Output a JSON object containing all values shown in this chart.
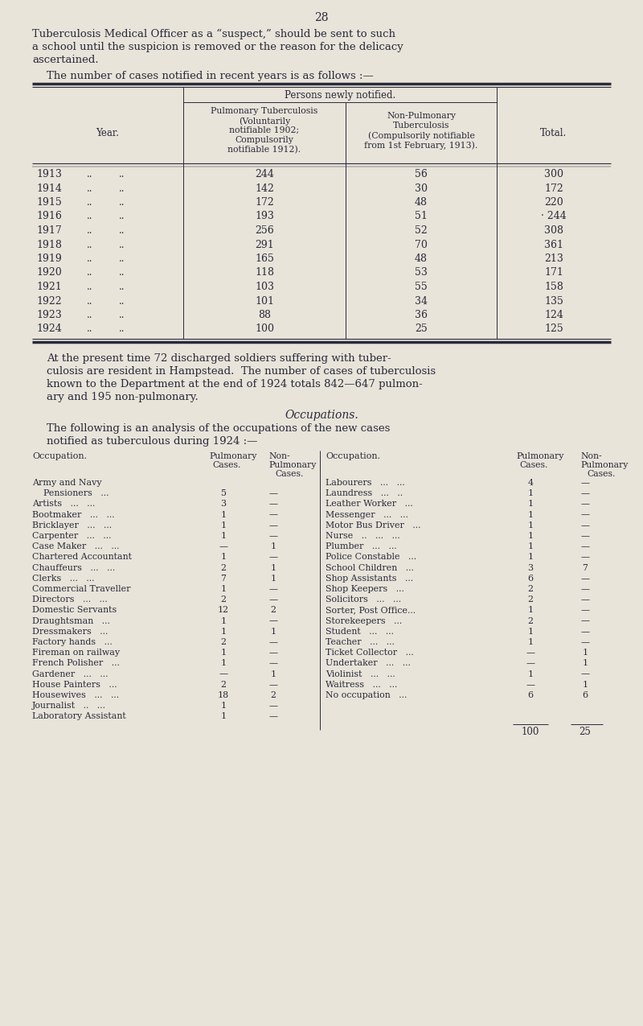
{
  "page_number": "28",
  "bg_color": "#e8e4da",
  "text_color": "#2a2a3a",
  "intro_text": [
    "Tuberculosis Medical Officer as a “suspect,” should be sent to such",
    "a school until the suspicion is removed or the reason for the delicacy",
    "ascertained."
  ],
  "table1_intro": "The number of cases notified in recent years is as follows :—",
  "table1_data": [
    [
      "1913",
      "244",
      "56",
      "300"
    ],
    [
      "1914",
      "142",
      "30",
      "172"
    ],
    [
      "1915",
      "172",
      "48",
      "220"
    ],
    [
      "1916",
      "193",
      "51",
      "· 244"
    ],
    [
      "1917",
      "256",
      "52",
      "308"
    ],
    [
      "1918",
      "291",
      "70",
      "361"
    ],
    [
      "1919",
      "165",
      "48",
      "213"
    ],
    [
      "1920",
      "118",
      "53",
      "171"
    ],
    [
      "1921",
      "103",
      "55",
      "158"
    ],
    [
      "1922",
      "101",
      "34",
      "135"
    ],
    [
      "1923",
      "88",
      "36",
      "124"
    ],
    [
      "1924",
      "100",
      "25",
      "125"
    ]
  ],
  "middle_text": [
    "At the present time 72 discharged soldiers suffering with tuber-",
    "culosis are resident in Hampstead.  The number of cases of tuberculosis",
    "known to the Department at the end of 1924 totals 842—647 pulmon-",
    "ary and 195 non-pulmonary."
  ],
  "occupations_title": "Occupations.",
  "occupations_intro": [
    "The following is an analysis of the occupations of the new cases",
    "notified as tuberculous during 1924 :—"
  ],
  "left_occupations": [
    [
      "Army and Navy",
      "",
      ""
    ],
    [
      "    Pensioners   ...   ",
      "5",
      "—"
    ],
    [
      "Artists   ...   ...",
      "3",
      "—"
    ],
    [
      "Bootmaker   ...   ...",
      "1",
      "—"
    ],
    [
      "Bricklayer   ...   ...",
      "1",
      "—"
    ],
    [
      "Carpenter   ...   ...",
      "1",
      "—"
    ],
    [
      "Case Maker   ...   ...",
      "—",
      "1"
    ],
    [
      "Chartered Accountant",
      "1",
      "—"
    ],
    [
      "Chauffeurs   ...   ...",
      "2",
      "1"
    ],
    [
      "Clerks   ...   ...",
      "7",
      "1"
    ],
    [
      "Commercial Traveller",
      "1",
      "—"
    ],
    [
      "Directors   ...   ...",
      "2",
      "—"
    ],
    [
      "Domestic Servants",
      "12",
      "2"
    ],
    [
      "Draughtsman   ...",
      "1",
      "—"
    ],
    [
      "Dressmakers   ...",
      "1",
      "1"
    ],
    [
      "Factory hands   ...",
      "2",
      "—"
    ],
    [
      "Fireman on railway",
      "1",
      "—"
    ],
    [
      "French Polisher   ...",
      "1",
      "—"
    ],
    [
      "Gardener   ...   ...",
      "—",
      "1"
    ],
    [
      "House Painters   ...",
      "2",
      "—"
    ],
    [
      "Housewives   ...   ...",
      "18",
      "2"
    ],
    [
      "Journalist   ..   ...",
      "1",
      "—"
    ],
    [
      "Laboratory Assistant",
      "1",
      "—"
    ]
  ],
  "right_occupations": [
    [
      "Labourers   ...   ...",
      "4",
      "—"
    ],
    [
      "Laundress   ...   ..",
      "1",
      "—"
    ],
    [
      "Leather Worker   ...",
      "1",
      "—"
    ],
    [
      "Messenger   ...   ...",
      "1",
      "—"
    ],
    [
      "Motor Bus Driver   ...",
      "1",
      "—"
    ],
    [
      "Nurse   ..   ...   ...",
      "1",
      "—"
    ],
    [
      "Plumber   ...   ...",
      "1",
      "—"
    ],
    [
      "Police Constable   ...",
      "1",
      "—"
    ],
    [
      "School Children   ...",
      "3",
      "7"
    ],
    [
      "Shop Assistants   ...",
      "6",
      "—"
    ],
    [
      "Shop Keepers   ...",
      "2",
      "—"
    ],
    [
      "Solicitors   ...   ...",
      "2",
      "—"
    ],
    [
      "Sorter, Post Office...",
      "1",
      "—"
    ],
    [
      "Storekeepers   ...",
      "2",
      "—"
    ],
    [
      "Student   ...   ...",
      "1",
      "—"
    ],
    [
      "Teacher   ...   ...",
      "1",
      "—"
    ],
    [
      "Ticket Collector   ...",
      "—",
      "1"
    ],
    [
      "Undertaker   ...   ...",
      "—",
      "1"
    ],
    [
      "Violinist   ...   ...",
      "1",
      "—"
    ],
    [
      "Waitress   ...   ...",
      "—",
      "1"
    ],
    [
      "No occupation   ...",
      "6",
      "6"
    ]
  ],
  "totals": [
    "100",
    "25"
  ]
}
